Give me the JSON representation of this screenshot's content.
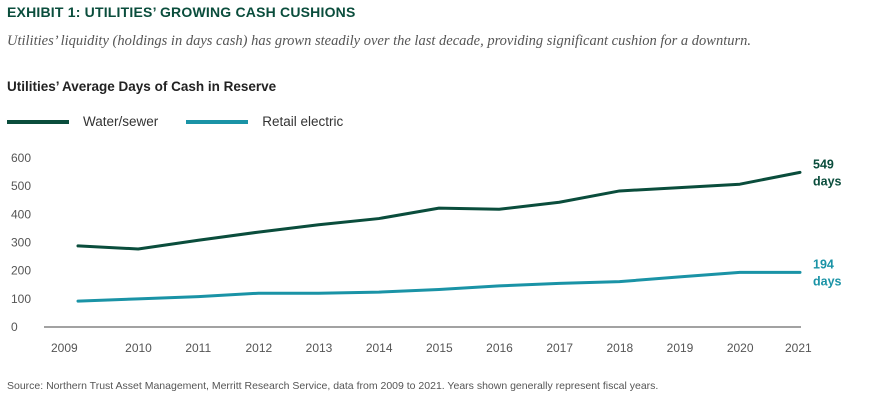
{
  "header": {
    "exhibit_title": "EXHIBIT 1: UTILITIES’ GROWING CASH CUSHIONS",
    "subtitle": "Utilities’ liquidity (holdings in days cash) has grown steadily over the last decade, providing significant cushion for a downturn.",
    "chart_title": "Utilities’ Average Days of Cash in Reserve"
  },
  "legend": {
    "items": [
      {
        "label": "Water/sewer",
        "color": "#0a4d3c"
      },
      {
        "label": "Retail electric",
        "color": "#1a93a6"
      }
    ]
  },
  "footer": {
    "source": "Source: Northern Trust Asset Management, Merritt Research Service, data from 2009 to 2021. Years shown generally represent fiscal years."
  },
  "chart_data": {
    "type": "line",
    "title": "Utilities’ Average Days of Cash in Reserve",
    "xlabel": "",
    "ylabel": "",
    "categories": [
      "2009",
      "2010",
      "2011",
      "2012",
      "2013",
      "2014",
      "2015",
      "2016",
      "2017",
      "2018",
      "2019",
      "2020",
      "2021"
    ],
    "ylim": [
      0,
      600
    ],
    "yticks": [
      0,
      100,
      200,
      300,
      400,
      500,
      600
    ],
    "grid": false,
    "legend_position": "top-left",
    "series": [
      {
        "name": "Water/sewer",
        "color": "#0a4d3c",
        "values": [
          288,
          277,
          308,
          337,
          363,
          385,
          422,
          418,
          443,
          483,
          495,
          507,
          549
        ],
        "end_label_value": "549",
        "end_label_unit": "days"
      },
      {
        "name": "Retail electric",
        "color": "#1a93a6",
        "values": [
          92,
          100,
          108,
          120,
          120,
          124,
          133,
          146,
          155,
          161,
          178,
          194,
          194
        ],
        "end_label_value": "194",
        "end_label_unit": "days"
      }
    ]
  }
}
